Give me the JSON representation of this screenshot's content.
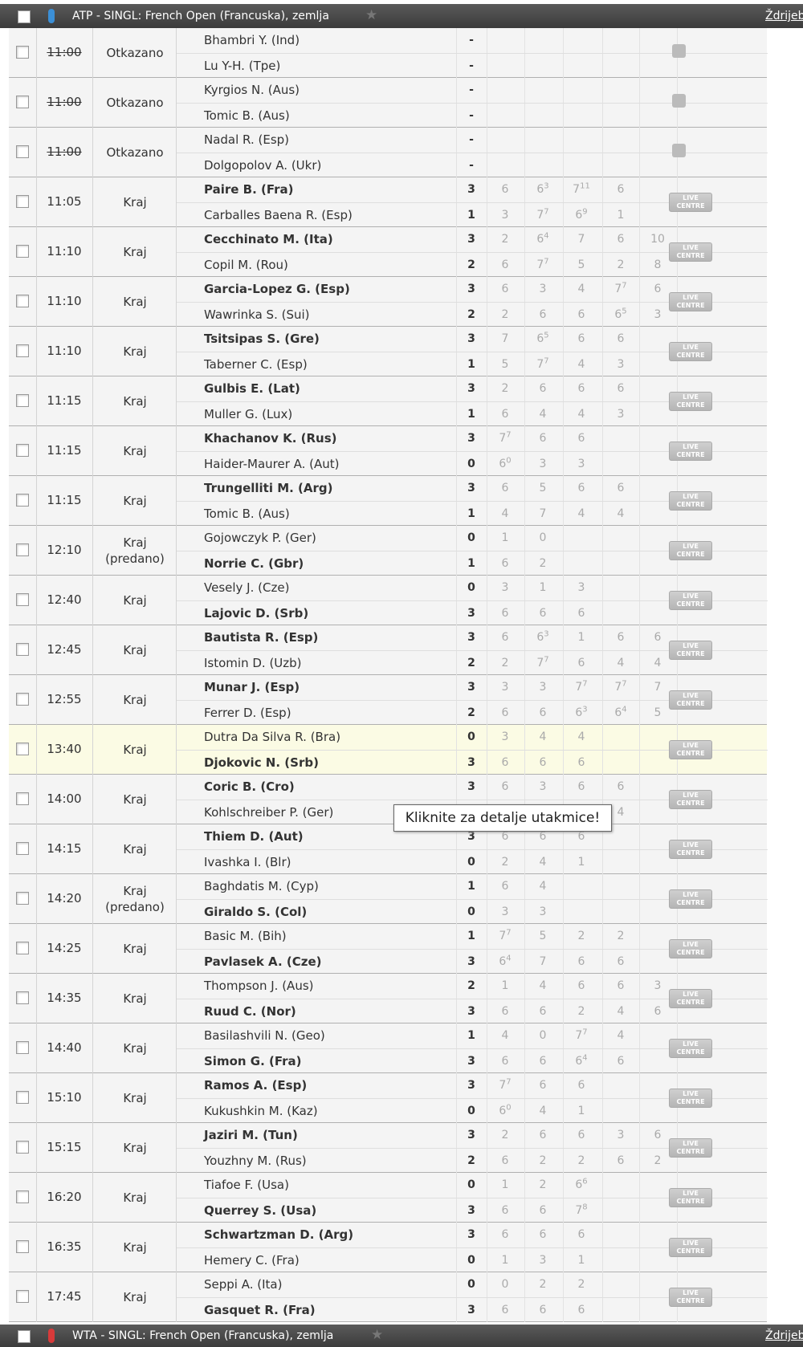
{
  "header": {
    "title": "ATP - SINGL: French Open (Francuska), zemlja",
    "link": "Ždrijeb"
  },
  "footer": {
    "title": "WTA - SINGL: French Open (Francuska), zemlja",
    "link": "Ždrijeb"
  },
  "live_label": "LIVE CENTRE",
  "tooltip": "Kliknite za detalje utakmice!",
  "matches": [
    {
      "time": "11:00",
      "cancelled": true,
      "status": [
        "Otkazano"
      ],
      "players": [
        {
          "name": "Bhambri Y. (Ind)",
          "bold": false,
          "total": "-",
          "sets": [],
          "tb": []
        },
        {
          "name": "Lu Y-H. (Tpe)",
          "bold": false,
          "total": "-",
          "sets": [],
          "tb": []
        }
      ]
    },
    {
      "time": "11:00",
      "cancelled": true,
      "status": [
        "Otkazano"
      ],
      "players": [
        {
          "name": "Kyrgios N. (Aus)",
          "bold": false,
          "total": "-",
          "sets": [],
          "tb": []
        },
        {
          "name": "Tomic B. (Aus)",
          "bold": false,
          "total": "-",
          "sets": [],
          "tb": []
        }
      ]
    },
    {
      "time": "11:00",
      "cancelled": true,
      "status": [
        "Otkazano"
      ],
      "players": [
        {
          "name": "Nadal R. (Esp)",
          "bold": false,
          "total": "-",
          "sets": [],
          "tb": []
        },
        {
          "name": "Dolgopolov A. (Ukr)",
          "bold": false,
          "total": "-",
          "sets": [],
          "tb": []
        }
      ]
    },
    {
      "time": "11:05",
      "status": [
        "Kraj"
      ],
      "players": [
        {
          "name": "Paire B. (Fra)",
          "bold": true,
          "total": 3,
          "sets": [
            6,
            6,
            7,
            6
          ],
          "tb": [
            null,
            3,
            11,
            null
          ]
        },
        {
          "name": "Carballes Baena R. (Esp)",
          "bold": false,
          "total": 1,
          "sets": [
            3,
            7,
            6,
            1
          ],
          "tb": [
            null,
            7,
            9,
            null
          ]
        }
      ]
    },
    {
      "time": "11:10",
      "status": [
        "Kraj"
      ],
      "players": [
        {
          "name": "Cecchinato M. (Ita)",
          "bold": true,
          "total": 3,
          "sets": [
            2,
            6,
            7,
            6,
            10
          ],
          "tb": [
            null,
            4,
            null,
            null,
            null
          ]
        },
        {
          "name": "Copil M. (Rou)",
          "bold": false,
          "total": 2,
          "sets": [
            6,
            7,
            5,
            2,
            8
          ],
          "tb": [
            null,
            7,
            null,
            null,
            null
          ]
        }
      ]
    },
    {
      "time": "11:10",
      "status": [
        "Kraj"
      ],
      "players": [
        {
          "name": "Garcia-Lopez G. (Esp)",
          "bold": true,
          "total": 3,
          "sets": [
            6,
            3,
            4,
            7,
            6
          ],
          "tb": [
            null,
            null,
            null,
            7,
            null
          ]
        },
        {
          "name": "Wawrinka S. (Sui)",
          "bold": false,
          "total": 2,
          "sets": [
            2,
            6,
            6,
            6,
            3
          ],
          "tb": [
            null,
            null,
            null,
            5,
            null
          ]
        }
      ]
    },
    {
      "time": "11:10",
      "status": [
        "Kraj"
      ],
      "players": [
        {
          "name": "Tsitsipas S. (Gre)",
          "bold": true,
          "total": 3,
          "sets": [
            7,
            6,
            6,
            6
          ],
          "tb": [
            null,
            5,
            null,
            null
          ]
        },
        {
          "name": "Taberner C. (Esp)",
          "bold": false,
          "total": 1,
          "sets": [
            5,
            7,
            4,
            3
          ],
          "tb": [
            null,
            7,
            null,
            null
          ]
        }
      ]
    },
    {
      "time": "11:15",
      "status": [
        "Kraj"
      ],
      "players": [
        {
          "name": "Gulbis E. (Lat)",
          "bold": true,
          "total": 3,
          "sets": [
            2,
            6,
            6,
            6
          ],
          "tb": []
        },
        {
          "name": "Muller G. (Lux)",
          "bold": false,
          "total": 1,
          "sets": [
            6,
            4,
            4,
            3
          ],
          "tb": []
        }
      ]
    },
    {
      "time": "11:15",
      "status": [
        "Kraj"
      ],
      "players": [
        {
          "name": "Khachanov K. (Rus)",
          "bold": true,
          "total": 3,
          "sets": [
            7,
            6,
            6
          ],
          "tb": [
            7,
            null,
            null
          ]
        },
        {
          "name": "Haider-Maurer A. (Aut)",
          "bold": false,
          "total": 0,
          "sets": [
            6,
            3,
            3
          ],
          "tb": [
            0,
            null,
            null
          ]
        }
      ]
    },
    {
      "time": "11:15",
      "status": [
        "Kraj"
      ],
      "players": [
        {
          "name": "Trungelliti M. (Arg)",
          "bold": true,
          "total": 3,
          "sets": [
            6,
            5,
            6,
            6
          ],
          "tb": []
        },
        {
          "name": "Tomic B. (Aus)",
          "bold": false,
          "total": 1,
          "sets": [
            4,
            7,
            4,
            4
          ],
          "tb": []
        }
      ]
    },
    {
      "time": "12:10",
      "status": [
        "Kraj",
        "(predano)"
      ],
      "players": [
        {
          "name": "Gojowczyk P. (Ger)",
          "bold": false,
          "total": 0,
          "sets": [
            1,
            0
          ],
          "tb": []
        },
        {
          "name": "Norrie C. (Gbr)",
          "bold": true,
          "total": 1,
          "sets": [
            6,
            2
          ],
          "tb": []
        }
      ]
    },
    {
      "time": "12:40",
      "status": [
        "Kraj"
      ],
      "players": [
        {
          "name": "Vesely J. (Cze)",
          "bold": false,
          "total": 0,
          "sets": [
            3,
            1,
            3
          ],
          "tb": []
        },
        {
          "name": "Lajovic D. (Srb)",
          "bold": true,
          "total": 3,
          "sets": [
            6,
            6,
            6
          ],
          "tb": []
        }
      ]
    },
    {
      "time": "12:45",
      "status": [
        "Kraj"
      ],
      "players": [
        {
          "name": "Bautista R. (Esp)",
          "bold": true,
          "total": 3,
          "sets": [
            6,
            6,
            1,
            6,
            6
          ],
          "tb": [
            null,
            3,
            null,
            null,
            null
          ]
        },
        {
          "name": "Istomin D. (Uzb)",
          "bold": false,
          "total": 2,
          "sets": [
            2,
            7,
            6,
            4,
            4
          ],
          "tb": [
            null,
            7,
            null,
            null,
            null
          ]
        }
      ]
    },
    {
      "time": "12:55",
      "status": [
        "Kraj"
      ],
      "players": [
        {
          "name": "Munar J. (Esp)",
          "bold": true,
          "total": 3,
          "sets": [
            3,
            3,
            7,
            7,
            7
          ],
          "tb": [
            null,
            null,
            7,
            7,
            null
          ]
        },
        {
          "name": "Ferrer D. (Esp)",
          "bold": false,
          "total": 2,
          "sets": [
            6,
            6,
            6,
            6,
            5
          ],
          "tb": [
            null,
            null,
            3,
            4,
            null
          ]
        }
      ]
    },
    {
      "time": "13:40",
      "highlight": true,
      "status": [
        "Kraj"
      ],
      "players": [
        {
          "name": "Dutra Da Silva R. (Bra)",
          "bold": false,
          "total": 0,
          "sets": [
            3,
            4,
            4
          ],
          "tb": []
        },
        {
          "name": "Djokovic N. (Srb)",
          "bold": true,
          "total": 3,
          "sets": [
            6,
            6,
            6
          ],
          "tb": []
        }
      ]
    },
    {
      "time": "14:00",
      "status": [
        "Kraj"
      ],
      "players": [
        {
          "name": "Coric B. (Cro)",
          "bold": true,
          "total": 3,
          "sets": [
            6,
            3,
            6,
            6
          ],
          "tb": []
        },
        {
          "name": "Kohlschreiber P. (Ger)",
          "bold": false,
          "total": null,
          "sets": [
            null,
            null,
            null,
            4
          ],
          "tb": []
        }
      ]
    },
    {
      "time": "14:15",
      "status": [
        "Kraj"
      ],
      "players": [
        {
          "name": "Thiem D. (Aut)",
          "bold": true,
          "total": 3,
          "sets": [
            6,
            6,
            6
          ],
          "tb": []
        },
        {
          "name": "Ivashka I. (Blr)",
          "bold": false,
          "total": 0,
          "sets": [
            2,
            4,
            1
          ],
          "tb": []
        }
      ]
    },
    {
      "time": "14:20",
      "status": [
        "Kraj",
        "(predano)"
      ],
      "players": [
        {
          "name": "Baghdatis M. (Cyp)",
          "bold": false,
          "total": 1,
          "sets": [
            6,
            4
          ],
          "tb": []
        },
        {
          "name": "Giraldo S. (Col)",
          "bold": true,
          "total": 0,
          "sets": [
            3,
            3
          ],
          "tb": []
        }
      ]
    },
    {
      "time": "14:25",
      "status": [
        "Kraj"
      ],
      "players": [
        {
          "name": "Basic M. (Bih)",
          "bold": false,
          "total": 1,
          "sets": [
            7,
            5,
            2,
            2
          ],
          "tb": [
            7,
            null,
            null,
            null
          ]
        },
        {
          "name": "Pavlasek A. (Cze)",
          "bold": true,
          "total": 3,
          "sets": [
            6,
            7,
            6,
            6
          ],
          "tb": [
            4,
            null,
            null,
            null
          ]
        }
      ]
    },
    {
      "time": "14:35",
      "status": [
        "Kraj"
      ],
      "players": [
        {
          "name": "Thompson J. (Aus)",
          "bold": false,
          "total": 2,
          "sets": [
            1,
            4,
            6,
            6,
            3
          ],
          "tb": []
        },
        {
          "name": "Ruud C. (Nor)",
          "bold": true,
          "total": 3,
          "sets": [
            6,
            6,
            2,
            4,
            6
          ],
          "tb": []
        }
      ]
    },
    {
      "time": "14:40",
      "status": [
        "Kraj"
      ],
      "players": [
        {
          "name": "Basilashvili N. (Geo)",
          "bold": false,
          "total": 1,
          "sets": [
            4,
            0,
            7,
            4
          ],
          "tb": [
            null,
            null,
            7,
            null
          ]
        },
        {
          "name": "Simon G. (Fra)",
          "bold": true,
          "total": 3,
          "sets": [
            6,
            6,
            6,
            6
          ],
          "tb": [
            null,
            null,
            4,
            null
          ]
        }
      ]
    },
    {
      "time": "15:10",
      "status": [
        "Kraj"
      ],
      "players": [
        {
          "name": "Ramos A. (Esp)",
          "bold": true,
          "total": 3,
          "sets": [
            7,
            6,
            6
          ],
          "tb": [
            7,
            null,
            null
          ]
        },
        {
          "name": "Kukushkin M. (Kaz)",
          "bold": false,
          "total": 0,
          "sets": [
            6,
            4,
            1
          ],
          "tb": [
            0,
            null,
            null
          ]
        }
      ]
    },
    {
      "time": "15:15",
      "status": [
        "Kraj"
      ],
      "players": [
        {
          "name": "Jaziri M. (Tun)",
          "bold": true,
          "total": 3,
          "sets": [
            2,
            6,
            6,
            3,
            6
          ],
          "tb": []
        },
        {
          "name": "Youzhny M. (Rus)",
          "bold": false,
          "total": 2,
          "sets": [
            6,
            2,
            2,
            6,
            2
          ],
          "tb": []
        }
      ]
    },
    {
      "time": "16:20",
      "status": [
        "Kraj"
      ],
      "players": [
        {
          "name": "Tiafoe F. (Usa)",
          "bold": false,
          "total": 0,
          "sets": [
            1,
            2,
            6
          ],
          "tb": [
            null,
            null,
            6
          ]
        },
        {
          "name": "Querrey S. (Usa)",
          "bold": true,
          "total": 3,
          "sets": [
            6,
            6,
            7
          ],
          "tb": [
            null,
            null,
            8
          ]
        }
      ]
    },
    {
      "time": "16:35",
      "status": [
        "Kraj"
      ],
      "players": [
        {
          "name": "Schwartzman D. (Arg)",
          "bold": true,
          "total": 3,
          "sets": [
            6,
            6,
            6
          ],
          "tb": []
        },
        {
          "name": "Hemery C. (Fra)",
          "bold": false,
          "total": 0,
          "sets": [
            1,
            3,
            1
          ],
          "tb": []
        }
      ]
    },
    {
      "time": "17:45",
      "status": [
        "Kraj"
      ],
      "players": [
        {
          "name": "Seppi A. (Ita)",
          "bold": false,
          "total": 0,
          "sets": [
            0,
            2,
            2
          ],
          "tb": []
        },
        {
          "name": "Gasquet R. (Fra)",
          "bold": true,
          "total": 3,
          "sets": [
            6,
            6,
            6
          ],
          "tb": []
        }
      ]
    }
  ]
}
